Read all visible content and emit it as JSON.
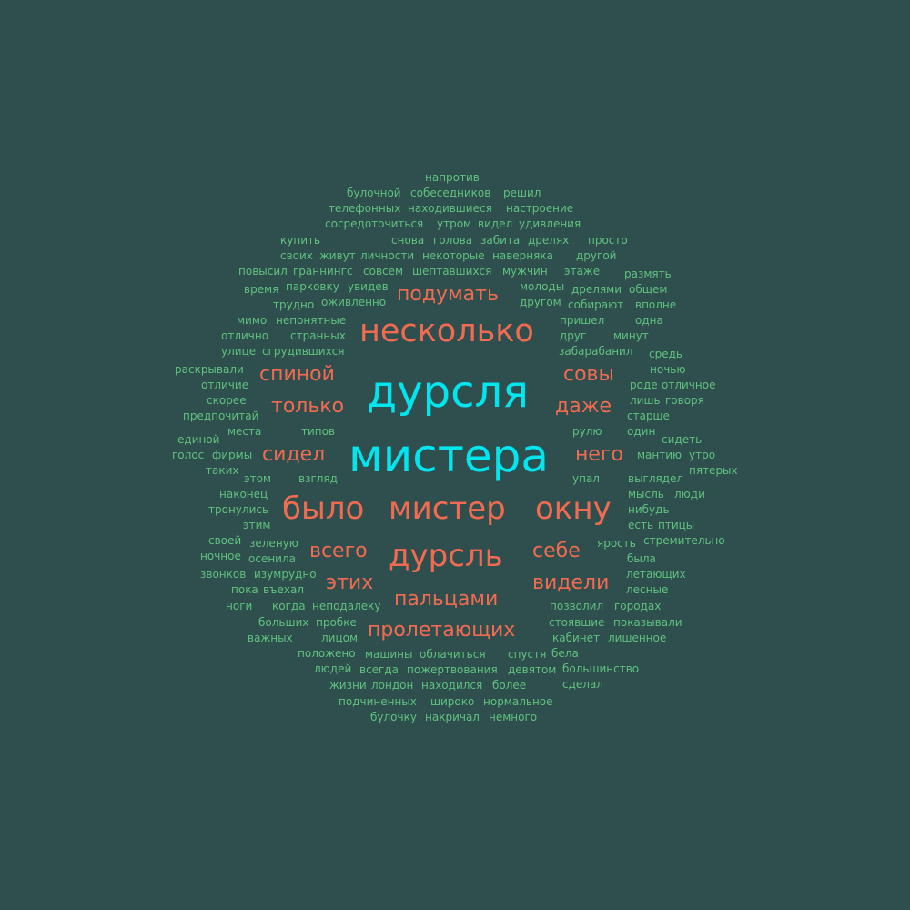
{
  "background": "#2f4f4f",
  "colors": {
    "large": "#00e5ee",
    "medium": "#f26b50",
    "small": "#5ec27d"
  },
  "words": [
    {
      "text": "дурсля",
      "tier": "large"
    },
    {
      "text": "мистера",
      "tier": "large"
    },
    {
      "text": "несколько",
      "tier": "medium"
    },
    {
      "text": "было",
      "tier": "medium"
    },
    {
      "text": "мистер",
      "tier": "medium"
    },
    {
      "text": "окну",
      "tier": "medium"
    },
    {
      "text": "дурсль",
      "tier": "medium"
    },
    {
      "text": "подумать",
      "tier": "medium"
    },
    {
      "text": "спиной",
      "tier": "medium"
    },
    {
      "text": "совы",
      "tier": "medium"
    },
    {
      "text": "только",
      "tier": "medium"
    },
    {
      "text": "даже",
      "tier": "medium"
    },
    {
      "text": "сидел",
      "tier": "medium"
    },
    {
      "text": "него",
      "tier": "medium"
    },
    {
      "text": "всего",
      "tier": "medium"
    },
    {
      "text": "себе",
      "tier": "medium"
    },
    {
      "text": "этих",
      "tier": "medium"
    },
    {
      "text": "видели",
      "tier": "medium"
    },
    {
      "text": "пальцами",
      "tier": "medium"
    },
    {
      "text": "пролетающих",
      "tier": "medium"
    },
    {
      "text": "напротив",
      "tier": "small"
    },
    {
      "text": "булочной",
      "tier": "small"
    },
    {
      "text": "собеседников",
      "tier": "small"
    },
    {
      "text": "решил",
      "tier": "small"
    },
    {
      "text": "телефонных",
      "tier": "small"
    },
    {
      "text": "находившиеся",
      "tier": "small"
    },
    {
      "text": "настроение",
      "tier": "small"
    },
    {
      "text": "сосредоточиться",
      "tier": "small"
    },
    {
      "text": "утром",
      "tier": "small"
    },
    {
      "text": "видел",
      "tier": "small"
    },
    {
      "text": "удивления",
      "tier": "small"
    },
    {
      "text": "купить",
      "tier": "small"
    },
    {
      "text": "снова",
      "tier": "small"
    },
    {
      "text": "голова",
      "tier": "small"
    },
    {
      "text": "забита",
      "tier": "small"
    },
    {
      "text": "дрелях",
      "tier": "small"
    },
    {
      "text": "просто",
      "tier": "small"
    },
    {
      "text": "своих",
      "tier": "small"
    },
    {
      "text": "живут",
      "tier": "small"
    },
    {
      "text": "личности",
      "tier": "small"
    },
    {
      "text": "некоторые",
      "tier": "small"
    },
    {
      "text": "наверняка",
      "tier": "small"
    },
    {
      "text": "другой",
      "tier": "small"
    },
    {
      "text": "повысил",
      "tier": "small"
    },
    {
      "text": "граннингс",
      "tier": "small"
    },
    {
      "text": "совсем",
      "tier": "small"
    },
    {
      "text": "шептавшихся",
      "tier": "small"
    },
    {
      "text": "мужчин",
      "tier": "small"
    },
    {
      "text": "этаже",
      "tier": "small"
    },
    {
      "text": "размять",
      "tier": "small"
    },
    {
      "text": "время",
      "tier": "small"
    },
    {
      "text": "парковку",
      "tier": "small"
    },
    {
      "text": "увидев",
      "tier": "small"
    },
    {
      "text": "молоды",
      "tier": "small"
    },
    {
      "text": "дрелями",
      "tier": "small"
    },
    {
      "text": "общем",
      "tier": "small"
    },
    {
      "text": "трудно",
      "tier": "small"
    },
    {
      "text": "оживленно",
      "tier": "small"
    },
    {
      "text": "другом",
      "tier": "small"
    },
    {
      "text": "собирают",
      "tier": "small"
    },
    {
      "text": "вполне",
      "tier": "small"
    },
    {
      "text": "мимо",
      "tier": "small"
    },
    {
      "text": "непонятные",
      "tier": "small"
    },
    {
      "text": "пришел",
      "tier": "small"
    },
    {
      "text": "одна",
      "tier": "small"
    },
    {
      "text": "отлично",
      "tier": "small"
    },
    {
      "text": "странных",
      "tier": "small"
    },
    {
      "text": "друг",
      "tier": "small"
    },
    {
      "text": "минут",
      "tier": "small"
    },
    {
      "text": "улице",
      "tier": "small"
    },
    {
      "text": "сгрудившихся",
      "tier": "small"
    },
    {
      "text": "забарабанил",
      "tier": "small"
    },
    {
      "text": "средь",
      "tier": "small"
    },
    {
      "text": "раскрывали",
      "tier": "small"
    },
    {
      "text": "ночью",
      "tier": "small"
    },
    {
      "text": "отличие",
      "tier": "small"
    },
    {
      "text": "роде",
      "tier": "small"
    },
    {
      "text": "отличное",
      "tier": "small"
    },
    {
      "text": "скорее",
      "tier": "small"
    },
    {
      "text": "лишь",
      "tier": "small"
    },
    {
      "text": "говоря",
      "tier": "small"
    },
    {
      "text": "предпочитай",
      "tier": "small"
    },
    {
      "text": "старше",
      "tier": "small"
    },
    {
      "text": "места",
      "tier": "small"
    },
    {
      "text": "типов",
      "tier": "small"
    },
    {
      "text": "рулю",
      "tier": "small"
    },
    {
      "text": "один",
      "tier": "small"
    },
    {
      "text": "единой",
      "tier": "small"
    },
    {
      "text": "сидеть",
      "tier": "small"
    },
    {
      "text": "голос",
      "tier": "small"
    },
    {
      "text": "фирмы",
      "tier": "small"
    },
    {
      "text": "мантию",
      "tier": "small"
    },
    {
      "text": "утро",
      "tier": "small"
    },
    {
      "text": "таких",
      "tier": "small"
    },
    {
      "text": "пятерых",
      "tier": "small"
    },
    {
      "text": "этом",
      "tier": "small"
    },
    {
      "text": "взгляд",
      "tier": "small"
    },
    {
      "text": "упал",
      "tier": "small"
    },
    {
      "text": "выглядел",
      "tier": "small"
    },
    {
      "text": "наконец",
      "tier": "small"
    },
    {
      "text": "мысль",
      "tier": "small"
    },
    {
      "text": "люди",
      "tier": "small"
    },
    {
      "text": "тронулись",
      "tier": "small"
    },
    {
      "text": "нибудь",
      "tier": "small"
    },
    {
      "text": "этим",
      "tier": "small"
    },
    {
      "text": "есть",
      "tier": "small"
    },
    {
      "text": "птицы",
      "tier": "small"
    },
    {
      "text": "своей",
      "tier": "small"
    },
    {
      "text": "зеленую",
      "tier": "small"
    },
    {
      "text": "ярость",
      "tier": "small"
    },
    {
      "text": "стремительно",
      "tier": "small"
    },
    {
      "text": "ночное",
      "tier": "small"
    },
    {
      "text": "осенила",
      "tier": "small"
    },
    {
      "text": "была",
      "tier": "small"
    },
    {
      "text": "звонков",
      "tier": "small"
    },
    {
      "text": "изумрудно",
      "tier": "small"
    },
    {
      "text": "летающих",
      "tier": "small"
    },
    {
      "text": "пока",
      "tier": "small"
    },
    {
      "text": "въехал",
      "tier": "small"
    },
    {
      "text": "лесные",
      "tier": "small"
    },
    {
      "text": "ноги",
      "tier": "small"
    },
    {
      "text": "когда",
      "tier": "small"
    },
    {
      "text": "неподалеку",
      "tier": "small"
    },
    {
      "text": "позволил",
      "tier": "small"
    },
    {
      "text": "городах",
      "tier": "small"
    },
    {
      "text": "больших",
      "tier": "small"
    },
    {
      "text": "пробке",
      "tier": "small"
    },
    {
      "text": "стоявшие",
      "tier": "small"
    },
    {
      "text": "показывали",
      "tier": "small"
    },
    {
      "text": "важных",
      "tier": "small"
    },
    {
      "text": "лицом",
      "tier": "small"
    },
    {
      "text": "кабинет",
      "tier": "small"
    },
    {
      "text": "лишенное",
      "tier": "small"
    },
    {
      "text": "положено",
      "tier": "small"
    },
    {
      "text": "машины",
      "tier": "small"
    },
    {
      "text": "облачиться",
      "tier": "small"
    },
    {
      "text": "спустя",
      "tier": "small"
    },
    {
      "text": "бела",
      "tier": "small"
    },
    {
      "text": "людей",
      "tier": "small"
    },
    {
      "text": "всегда",
      "tier": "small"
    },
    {
      "text": "пожертвования",
      "tier": "small"
    },
    {
      "text": "девятом",
      "tier": "small"
    },
    {
      "text": "большинство",
      "tier": "small"
    },
    {
      "text": "жизни",
      "tier": "small"
    },
    {
      "text": "лондон",
      "tier": "small"
    },
    {
      "text": "находился",
      "tier": "small"
    },
    {
      "text": "более",
      "tier": "small"
    },
    {
      "text": "сделал",
      "tier": "small"
    },
    {
      "text": "подчиненных",
      "tier": "small"
    },
    {
      "text": "широко",
      "tier": "small"
    },
    {
      "text": "нормальное",
      "tier": "small"
    },
    {
      "text": "булочку",
      "tier": "small"
    },
    {
      "text": "накричал",
      "tier": "small"
    },
    {
      "text": "немного",
      "tier": "small"
    }
  ]
}
